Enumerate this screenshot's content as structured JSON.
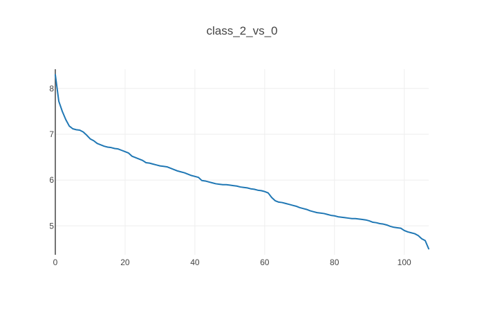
{
  "chart_data": {
    "type": "line",
    "title": "class_2_vs_0",
    "xlabel": "",
    "ylabel": "",
    "xlim": [
      0,
      107
    ],
    "ylim": [
      4.37,
      8.42
    ],
    "x_ticks": [
      0,
      20,
      40,
      60,
      80,
      100
    ],
    "y_ticks": [
      5,
      6,
      7,
      8
    ],
    "grid": true,
    "legend": "none",
    "series": [
      {
        "color": "#1f77b4",
        "points": [
          [
            0,
            8.3
          ],
          [
            1,
            7.72
          ],
          [
            2,
            7.5
          ],
          [
            3,
            7.32
          ],
          [
            4,
            7.18
          ],
          [
            5,
            7.12
          ],
          [
            6,
            7.1
          ],
          [
            7,
            7.09
          ],
          [
            8,
            7.05
          ],
          [
            9,
            6.98
          ],
          [
            10,
            6.9
          ],
          [
            11,
            6.86
          ],
          [
            12,
            6.8
          ],
          [
            13,
            6.77
          ],
          [
            14,
            6.74
          ],
          [
            15,
            6.72
          ],
          [
            16,
            6.71
          ],
          [
            17,
            6.69
          ],
          [
            18,
            6.68
          ],
          [
            19,
            6.65
          ],
          [
            20,
            6.62
          ],
          [
            21,
            6.59
          ],
          [
            22,
            6.52
          ],
          [
            23,
            6.49
          ],
          [
            24,
            6.46
          ],
          [
            25,
            6.43
          ],
          [
            26,
            6.38
          ],
          [
            27,
            6.37
          ],
          [
            28,
            6.35
          ],
          [
            29,
            6.33
          ],
          [
            30,
            6.31
          ],
          [
            31,
            6.3
          ],
          [
            32,
            6.29
          ],
          [
            33,
            6.26
          ],
          [
            34,
            6.23
          ],
          [
            35,
            6.2
          ],
          [
            36,
            6.18
          ],
          [
            37,
            6.16
          ],
          [
            38,
            6.13
          ],
          [
            39,
            6.1
          ],
          [
            40,
            6.08
          ],
          [
            41,
            6.06
          ],
          [
            42,
            5.99
          ],
          [
            43,
            5.98
          ],
          [
            44,
            5.96
          ],
          [
            45,
            5.94
          ],
          [
            46,
            5.92
          ],
          [
            47,
            5.91
          ],
          [
            48,
            5.9
          ],
          [
            49,
            5.9
          ],
          [
            50,
            5.89
          ],
          [
            51,
            5.88
          ],
          [
            52,
            5.87
          ],
          [
            53,
            5.85
          ],
          [
            54,
            5.84
          ],
          [
            55,
            5.83
          ],
          [
            56,
            5.81
          ],
          [
            57,
            5.8
          ],
          [
            58,
            5.78
          ],
          [
            59,
            5.77
          ],
          [
            60,
            5.75
          ],
          [
            61,
            5.72
          ],
          [
            62,
            5.62
          ],
          [
            63,
            5.55
          ],
          [
            64,
            5.52
          ],
          [
            65,
            5.51
          ],
          [
            66,
            5.49
          ],
          [
            67,
            5.47
          ],
          [
            68,
            5.45
          ],
          [
            69,
            5.43
          ],
          [
            70,
            5.4
          ],
          [
            71,
            5.38
          ],
          [
            72,
            5.36
          ],
          [
            73,
            5.33
          ],
          [
            74,
            5.31
          ],
          [
            75,
            5.29
          ],
          [
            76,
            5.28
          ],
          [
            77,
            5.27
          ],
          [
            78,
            5.25
          ],
          [
            79,
            5.23
          ],
          [
            80,
            5.22
          ],
          [
            81,
            5.2
          ],
          [
            82,
            5.19
          ],
          [
            83,
            5.18
          ],
          [
            84,
            5.17
          ],
          [
            85,
            5.16
          ],
          [
            86,
            5.16
          ],
          [
            87,
            5.15
          ],
          [
            88,
            5.14
          ],
          [
            89,
            5.13
          ],
          [
            90,
            5.11
          ],
          [
            91,
            5.08
          ],
          [
            92,
            5.07
          ],
          [
            93,
            5.05
          ],
          [
            94,
            5.04
          ],
          [
            95,
            5.02
          ],
          [
            96,
            4.99
          ],
          [
            97,
            4.97
          ],
          [
            98,
            4.96
          ],
          [
            99,
            4.95
          ],
          [
            100,
            4.9
          ],
          [
            101,
            4.87
          ],
          [
            102,
            4.85
          ],
          [
            103,
            4.83
          ],
          [
            104,
            4.79
          ],
          [
            105,
            4.72
          ],
          [
            106,
            4.68
          ],
          [
            107,
            4.5
          ]
        ]
      }
    ]
  }
}
